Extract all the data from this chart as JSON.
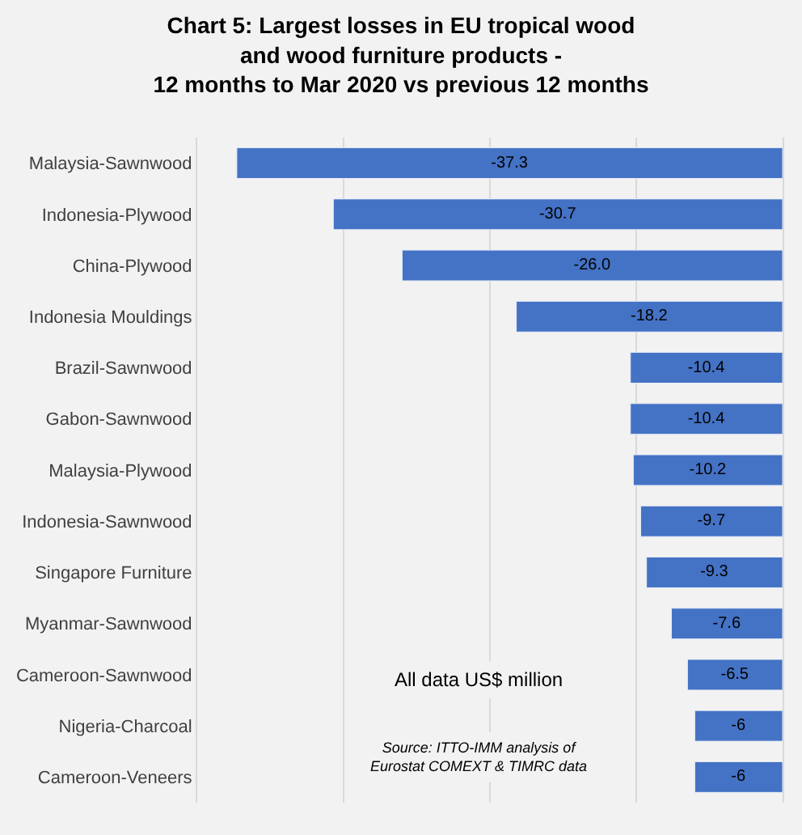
{
  "chart_data": {
    "type": "bar",
    "orientation": "horizontal",
    "title": "Chart 5: Largest losses in EU tropical wood and wood furniture products - 12 months to Mar 2020 vs previous 12 months",
    "categories": [
      "Malaysia-Sawnwood",
      "Indonesia-Plywood",
      "China-Plywood",
      "Indonesia Mouldings",
      "Brazil-Sawnwood",
      "Gabon-Sawnwood",
      "Malaysia-Plywood",
      "Indonesia-Sawnwood",
      "Singapore Furniture",
      "Myanmar-Sawnwood",
      "Cameroon-Sawnwood",
      "Nigeria-Charcoal",
      "Cameroon-Veneers"
    ],
    "values": [
      -37.3,
      -30.7,
      -26.0,
      -18.2,
      -10.4,
      -10.4,
      -10.2,
      -9.7,
      -9.3,
      -7.6,
      -6.5,
      -6,
      -6
    ],
    "value_labels": [
      "-37.3",
      "-30.7",
      "-26.0",
      "-18.2",
      "-10.4",
      "-10.4",
      "-10.2",
      "-9.7",
      "-9.3",
      "-7.6",
      "-6.5",
      "-6",
      "-6"
    ],
    "color": "#4472c4",
    "xlim": [
      -40,
      0
    ],
    "xticks": [
      {
        "value": -30,
        "label": null
      },
      {
        "value": -20,
        "label": null
      },
      {
        "value": -10,
        "label": null
      }
    ],
    "tick_labels": "y",
    "grid": "x",
    "legend": false,
    "annotations": [
      "All data US$ million",
      "Source: ITTO-IMM analysis of Eurostat COMEXT & TIMRC data"
    ]
  }
}
